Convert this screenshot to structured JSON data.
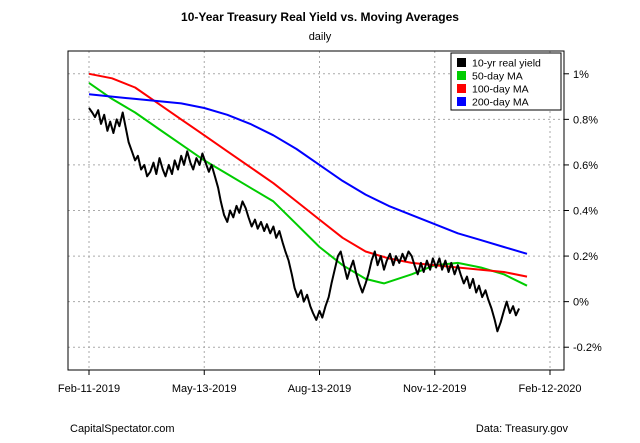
{
  "chart_data": {
    "type": "line",
    "title": "10-Year Treasury Real Yield vs. Moving Averages",
    "subtitle": "daily",
    "x_tick_labels": [
      "Feb-11-2019",
      "May-13-2019",
      "Aug-13-2019",
      "Nov-12-2019",
      "Feb-12-2020"
    ],
    "y_ticks": [
      -0.2,
      0,
      0.2,
      0.4,
      0.6,
      0.8,
      1.0
    ],
    "y_tick_labels": [
      "-0.2%",
      "0%",
      "0.2%",
      "0.4%",
      "0.6%",
      "0.8%",
      "1%"
    ],
    "xlim": [
      0,
      1
    ],
    "ylim": [
      -0.3,
      1.1
    ],
    "grid": true,
    "legend_position": "top-right",
    "series": [
      {
        "name": "10-yr real yield",
        "color": "#000000",
        "points": [
          [
            0.0,
            0.85
          ],
          [
            0.007,
            0.83
          ],
          [
            0.013,
            0.81
          ],
          [
            0.02,
            0.84
          ],
          [
            0.026,
            0.78
          ],
          [
            0.033,
            0.82
          ],
          [
            0.04,
            0.75
          ],
          [
            0.046,
            0.79
          ],
          [
            0.053,
            0.74
          ],
          [
            0.06,
            0.8
          ],
          [
            0.066,
            0.77
          ],
          [
            0.073,
            0.83
          ],
          [
            0.08,
            0.76
          ],
          [
            0.086,
            0.7
          ],
          [
            0.093,
            0.66
          ],
          [
            0.1,
            0.62
          ],
          [
            0.106,
            0.64
          ],
          [
            0.113,
            0.58
          ],
          [
            0.12,
            0.6
          ],
          [
            0.126,
            0.55
          ],
          [
            0.133,
            0.57
          ],
          [
            0.14,
            0.61
          ],
          [
            0.146,
            0.56
          ],
          [
            0.153,
            0.63
          ],
          [
            0.16,
            0.58
          ],
          [
            0.166,
            0.55
          ],
          [
            0.173,
            0.6
          ],
          [
            0.18,
            0.56
          ],
          [
            0.186,
            0.62
          ],
          [
            0.193,
            0.58
          ],
          [
            0.2,
            0.64
          ],
          [
            0.206,
            0.6
          ],
          [
            0.213,
            0.66
          ],
          [
            0.22,
            0.61
          ],
          [
            0.226,
            0.58
          ],
          [
            0.233,
            0.63
          ],
          [
            0.24,
            0.6
          ],
          [
            0.246,
            0.65
          ],
          [
            0.253,
            0.61
          ],
          [
            0.26,
            0.57
          ],
          [
            0.266,
            0.6
          ],
          [
            0.273,
            0.55
          ],
          [
            0.28,
            0.5
          ],
          [
            0.286,
            0.44
          ],
          [
            0.293,
            0.38
          ],
          [
            0.3,
            0.35
          ],
          [
            0.306,
            0.4
          ],
          [
            0.313,
            0.37
          ],
          [
            0.32,
            0.42
          ],
          [
            0.326,
            0.39
          ],
          [
            0.333,
            0.44
          ],
          [
            0.34,
            0.41
          ],
          [
            0.346,
            0.37
          ],
          [
            0.353,
            0.33
          ],
          [
            0.36,
            0.36
          ],
          [
            0.366,
            0.32
          ],
          [
            0.373,
            0.35
          ],
          [
            0.38,
            0.31
          ],
          [
            0.386,
            0.34
          ],
          [
            0.393,
            0.3
          ],
          [
            0.4,
            0.33
          ],
          [
            0.406,
            0.28
          ],
          [
            0.413,
            0.31
          ],
          [
            0.42,
            0.26
          ],
          [
            0.426,
            0.22
          ],
          [
            0.433,
            0.18
          ],
          [
            0.44,
            0.12
          ],
          [
            0.446,
            0.06
          ],
          [
            0.453,
            0.02
          ],
          [
            0.46,
            0.05
          ],
          [
            0.466,
            0.0
          ],
          [
            0.473,
            0.03
          ],
          [
            0.48,
            -0.02
          ],
          [
            0.486,
            -0.05
          ],
          [
            0.493,
            -0.08
          ],
          [
            0.5,
            -0.04
          ],
          [
            0.506,
            -0.07
          ],
          [
            0.513,
            -0.02
          ],
          [
            0.52,
            0.02
          ],
          [
            0.526,
            0.08
          ],
          [
            0.533,
            0.14
          ],
          [
            0.54,
            0.2
          ],
          [
            0.546,
            0.22
          ],
          [
            0.553,
            0.16
          ],
          [
            0.56,
            0.1
          ],
          [
            0.566,
            0.14
          ],
          [
            0.573,
            0.18
          ],
          [
            0.58,
            0.12
          ],
          [
            0.586,
            0.08
          ],
          [
            0.593,
            0.04
          ],
          [
            0.6,
            0.08
          ],
          [
            0.606,
            0.12
          ],
          [
            0.613,
            0.18
          ],
          [
            0.62,
            0.22
          ],
          [
            0.626,
            0.16
          ],
          [
            0.633,
            0.2
          ],
          [
            0.64,
            0.14
          ],
          [
            0.646,
            0.18
          ],
          [
            0.653,
            0.21
          ],
          [
            0.66,
            0.16
          ],
          [
            0.666,
            0.2
          ],
          [
            0.673,
            0.17
          ],
          [
            0.68,
            0.21
          ],
          [
            0.686,
            0.18
          ],
          [
            0.693,
            0.22
          ],
          [
            0.7,
            0.2
          ],
          [
            0.706,
            0.16
          ],
          [
            0.713,
            0.12
          ],
          [
            0.72,
            0.17
          ],
          [
            0.726,
            0.13
          ],
          [
            0.733,
            0.18
          ],
          [
            0.74,
            0.14
          ],
          [
            0.746,
            0.19
          ],
          [
            0.753,
            0.15
          ],
          [
            0.76,
            0.19
          ],
          [
            0.766,
            0.14
          ],
          [
            0.773,
            0.18
          ],
          [
            0.78,
            0.13
          ],
          [
            0.786,
            0.17
          ],
          [
            0.793,
            0.12
          ],
          [
            0.8,
            0.16
          ],
          [
            0.806,
            0.12
          ],
          [
            0.813,
            0.08
          ],
          [
            0.82,
            0.11
          ],
          [
            0.826,
            0.06
          ],
          [
            0.833,
            0.1
          ],
          [
            0.84,
            0.04
          ],
          [
            0.846,
            0.07
          ],
          [
            0.853,
            0.02
          ],
          [
            0.86,
            0.05
          ],
          [
            0.866,
            0.01
          ],
          [
            0.873,
            -0.03
          ],
          [
            0.88,
            -0.08
          ],
          [
            0.886,
            -0.13
          ],
          [
            0.893,
            -0.09
          ],
          [
            0.9,
            -0.04
          ],
          [
            0.906,
            0.0
          ],
          [
            0.913,
            -0.05
          ],
          [
            0.92,
            -0.02
          ],
          [
            0.926,
            -0.06
          ],
          [
            0.933,
            -0.03
          ]
        ]
      },
      {
        "name": "50-day MA",
        "color": "#00cc00",
        "points": [
          [
            0.0,
            0.96
          ],
          [
            0.05,
            0.89
          ],
          [
            0.1,
            0.83
          ],
          [
            0.15,
            0.76
          ],
          [
            0.2,
            0.69
          ],
          [
            0.25,
            0.62
          ],
          [
            0.3,
            0.56
          ],
          [
            0.35,
            0.5
          ],
          [
            0.4,
            0.44
          ],
          [
            0.45,
            0.34
          ],
          [
            0.5,
            0.24
          ],
          [
            0.55,
            0.16
          ],
          [
            0.6,
            0.1
          ],
          [
            0.64,
            0.08
          ],
          [
            0.7,
            0.12
          ],
          [
            0.75,
            0.16
          ],
          [
            0.8,
            0.17
          ],
          [
            0.85,
            0.15
          ],
          [
            0.9,
            0.12
          ],
          [
            0.95,
            0.07
          ]
        ]
      },
      {
        "name": "100-day MA",
        "color": "#ff0000",
        "points": [
          [
            0.0,
            1.0
          ],
          [
            0.05,
            0.98
          ],
          [
            0.1,
            0.94
          ],
          [
            0.15,
            0.87
          ],
          [
            0.2,
            0.8
          ],
          [
            0.25,
            0.73
          ],
          [
            0.3,
            0.66
          ],
          [
            0.35,
            0.59
          ],
          [
            0.4,
            0.52
          ],
          [
            0.45,
            0.44
          ],
          [
            0.5,
            0.36
          ],
          [
            0.55,
            0.28
          ],
          [
            0.6,
            0.22
          ],
          [
            0.65,
            0.19
          ],
          [
            0.7,
            0.17
          ],
          [
            0.75,
            0.16
          ],
          [
            0.8,
            0.15
          ],
          [
            0.85,
            0.14
          ],
          [
            0.9,
            0.13
          ],
          [
            0.95,
            0.11
          ]
        ]
      },
      {
        "name": "200-day MA",
        "color": "#0000ff",
        "points": [
          [
            0.0,
            0.91
          ],
          [
            0.05,
            0.9
          ],
          [
            0.1,
            0.89
          ],
          [
            0.15,
            0.88
          ],
          [
            0.2,
            0.87
          ],
          [
            0.25,
            0.85
          ],
          [
            0.3,
            0.82
          ],
          [
            0.35,
            0.78
          ],
          [
            0.4,
            0.73
          ],
          [
            0.45,
            0.67
          ],
          [
            0.5,
            0.6
          ],
          [
            0.55,
            0.53
          ],
          [
            0.6,
            0.47
          ],
          [
            0.65,
            0.42
          ],
          [
            0.7,
            0.38
          ],
          [
            0.75,
            0.34
          ],
          [
            0.8,
            0.3
          ],
          [
            0.85,
            0.27
          ],
          [
            0.9,
            0.24
          ],
          [
            0.95,
            0.21
          ]
        ]
      }
    ]
  },
  "footer": {
    "left": "CapitalSpectator.com",
    "right": "Data: Treasury.gov"
  }
}
